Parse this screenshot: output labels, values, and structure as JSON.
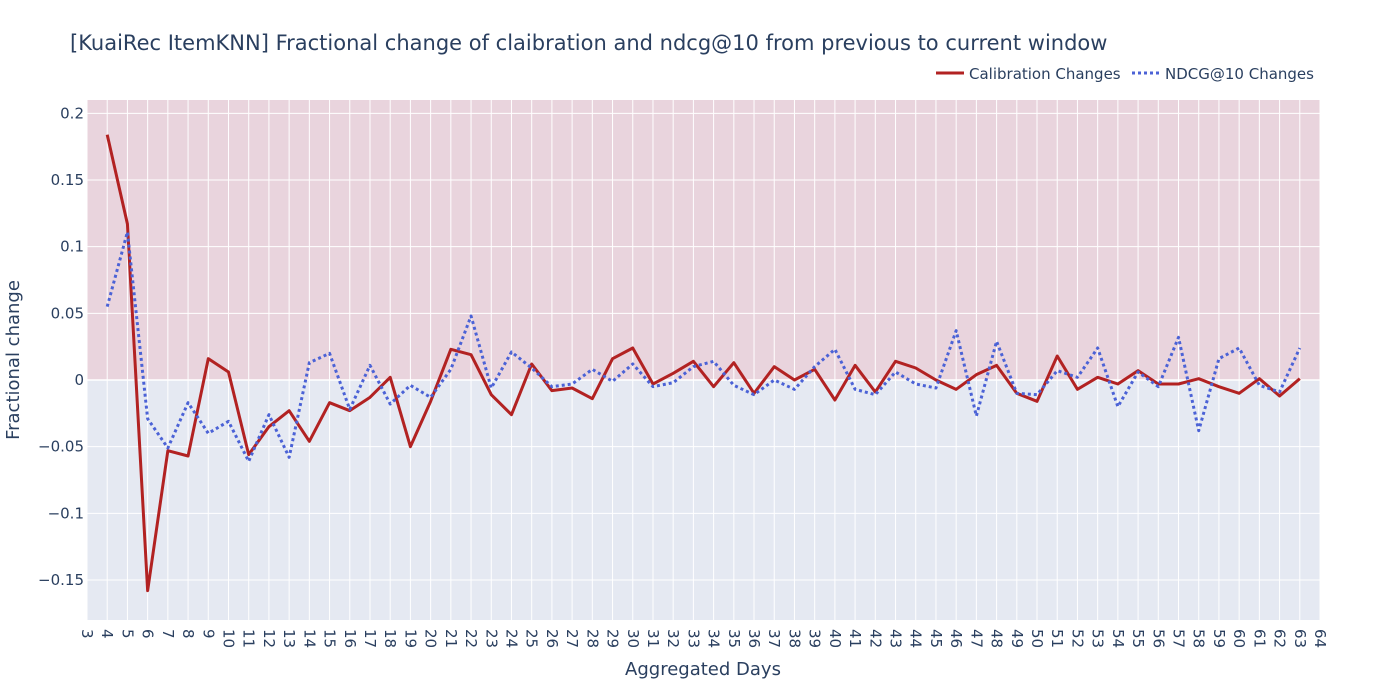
{
  "chart_data": {
    "type": "line",
    "title": "[KuaiRec ItemKNN] Fractional change of claibration and ndcg@10 from previous to current window",
    "xlabel": "Aggregated Days",
    "ylabel": "Fractional change",
    "xlim": [
      3,
      64
    ],
    "ylim": [
      -0.18,
      0.21
    ],
    "x_ticks": [
      3,
      4,
      5,
      6,
      7,
      8,
      9,
      10,
      11,
      12,
      13,
      14,
      15,
      16,
      17,
      18,
      19,
      20,
      21,
      22,
      23,
      24,
      25,
      26,
      27,
      28,
      29,
      30,
      31,
      32,
      33,
      34,
      35,
      36,
      37,
      38,
      39,
      40,
      41,
      42,
      43,
      44,
      45,
      46,
      47,
      48,
      49,
      50,
      51,
      52,
      53,
      54,
      55,
      56,
      57,
      58,
      59,
      60,
      61,
      62,
      63,
      64
    ],
    "y_ticks": [
      {
        "value": 0.2,
        "label": "0.2"
      },
      {
        "value": 0.15,
        "label": "0.15"
      },
      {
        "value": 0.1,
        "label": "0.1"
      },
      {
        "value": 0.05,
        "label": "0.05"
      },
      {
        "value": 0,
        "label": "0"
      },
      {
        "value": -0.05,
        "label": "−0.05"
      },
      {
        "value": -0.1,
        "label": "−0.1"
      },
      {
        "value": -0.15,
        "label": "−0.15"
      }
    ],
    "positive_region_color": "#e9d4dd",
    "negative_region_color": "#e5e9f2",
    "grid": true,
    "legend_position": "top-right",
    "x": [
      4,
      5,
      6,
      7,
      8,
      9,
      10,
      11,
      12,
      13,
      14,
      15,
      16,
      17,
      18,
      19,
      20,
      21,
      22,
      23,
      24,
      25,
      26,
      27,
      28,
      29,
      30,
      31,
      32,
      33,
      34,
      35,
      36,
      37,
      38,
      39,
      40,
      41,
      42,
      43,
      44,
      45,
      46,
      47,
      48,
      49,
      50,
      51,
      52,
      53,
      54,
      55,
      56,
      57,
      58,
      59,
      60,
      61,
      62,
      63
    ],
    "series": [
      {
        "name": "Calibration Changes",
        "color": "#b22222",
        "dash": "solid",
        "values": [
          0.184,
          0.117,
          -0.158,
          -0.053,
          -0.057,
          0.016,
          0.006,
          -0.056,
          -0.035,
          -0.023,
          -0.046,
          -0.017,
          -0.023,
          -0.013,
          0.002,
          -0.05,
          -0.016,
          0.023,
          0.019,
          -0.011,
          -0.026,
          0.012,
          -0.008,
          -0.006,
          -0.014,
          0.016,
          0.024,
          -0.003,
          0.005,
          0.014,
          -0.005,
          0.013,
          -0.01,
          0.01,
          0.0,
          0.008,
          -0.015,
          0.011,
          -0.009,
          0.014,
          0.009,
          0.0,
          -0.007,
          0.004,
          0.011,
          -0.01,
          -0.016,
          0.018,
          -0.007,
          0.002,
          -0.003,
          0.007,
          -0.003,
          -0.003,
          0.001,
          -0.005,
          -0.01,
          0.001,
          -0.012,
          0.001
        ]
      },
      {
        "name": "NDCG@10 Changes",
        "color": "#4b62d6",
        "dash": "dot",
        "values": [
          0.055,
          0.111,
          -0.029,
          -0.051,
          -0.017,
          -0.04,
          -0.031,
          -0.061,
          -0.026,
          -0.058,
          0.013,
          0.02,
          -0.022,
          0.011,
          -0.018,
          -0.004,
          -0.013,
          0.008,
          0.048,
          -0.006,
          0.021,
          0.009,
          -0.005,
          -0.003,
          0.008,
          -0.001,
          0.012,
          -0.005,
          -0.002,
          0.01,
          0.014,
          -0.004,
          -0.011,
          0.0,
          -0.007,
          0.01,
          0.023,
          -0.007,
          -0.011,
          0.006,
          -0.003,
          -0.006,
          0.037,
          -0.027,
          0.029,
          -0.01,
          -0.011,
          0.007,
          0.002,
          0.024,
          -0.02,
          0.006,
          -0.005,
          0.032,
          -0.038,
          0.016,
          0.024,
          -0.004,
          -0.009,
          0.024
        ]
      }
    ]
  }
}
